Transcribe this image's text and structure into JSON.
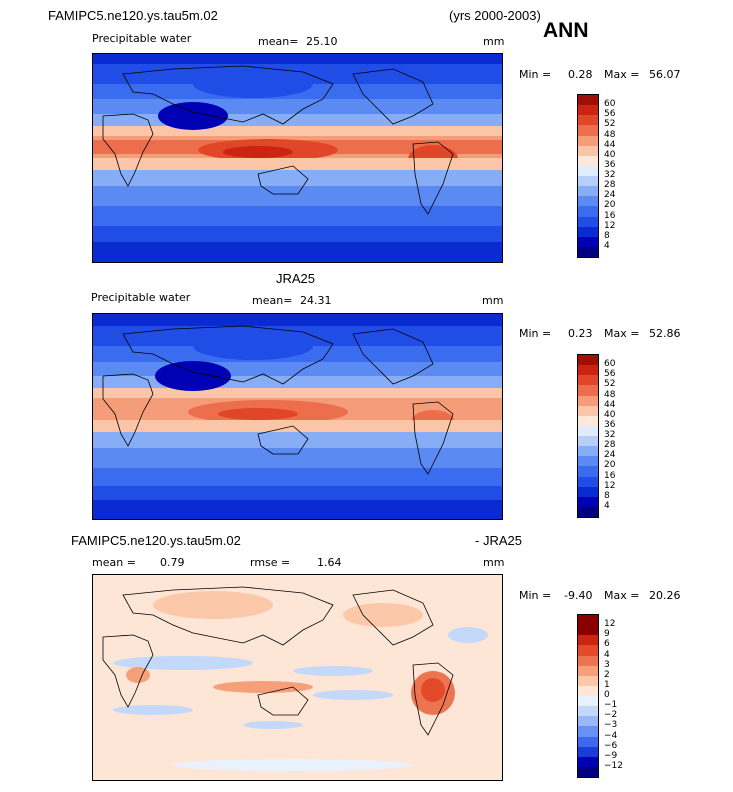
{
  "header": {
    "case_name": "FAMIPC5.ne120.ys.tau5m.02",
    "years": "(yrs 2000-2003)",
    "season": "ANN"
  },
  "panel1": {
    "variable": "Precipitable water",
    "mean_label": "mean=",
    "mean_value": "25.10",
    "units": "mm",
    "min_label": "Min =",
    "min_value": "0.28",
    "max_label": "Max =",
    "max_value": "56.07",
    "colorbar_labels": [
      "60",
      "56",
      "52",
      "48",
      "44",
      "40",
      "36",
      "32",
      "28",
      "24",
      "20",
      "16",
      "12",
      "8",
      "4"
    ]
  },
  "panel2": {
    "title": "JRA25",
    "variable": "Precipitable water",
    "mean_label": "mean=",
    "mean_value": "24.31",
    "units": "mm",
    "min_label": "Min =",
    "min_value": "0.23",
    "max_label": "Max =",
    "max_value": "52.86",
    "colorbar_labels": [
      "60",
      "56",
      "52",
      "48",
      "44",
      "40",
      "36",
      "32",
      "28",
      "24",
      "20",
      "16",
      "12",
      "8",
      "4"
    ]
  },
  "panel3": {
    "title_left": "FAMIPC5.ne120.ys.tau5m.02",
    "title_right": "- JRA25",
    "mean_label": "mean =",
    "mean_value": "0.79",
    "rmse_label": "rmse =",
    "rmse_value": "1.64",
    "units": "mm",
    "min_label": "Min =",
    "min_value": "-9.40",
    "max_label": "Max =",
    "max_value": "20.26",
    "colorbar_labels": [
      "12",
      "9",
      "6",
      "4",
      "3",
      "2",
      "1",
      "0",
      "−1",
      "−2",
      "−3",
      "−4",
      "−6",
      "−9",
      "−12"
    ]
  },
  "colors": {
    "pw_scale": [
      "#000080",
      "#0000b4",
      "#0a2ad2",
      "#1f4de6",
      "#3a6cf0",
      "#5a8af2",
      "#86adf5",
      "#b5cff8",
      "#e0ecfb",
      "#fde8dc",
      "#fbc6a8",
      "#f59c78",
      "#ec6e4c",
      "#e24628",
      "#cc2312",
      "#a00e08",
      "#7a0000"
    ],
    "diff_scale": [
      "#000080",
      "#0000b4",
      "#1a3dd8",
      "#3e68ec",
      "#6a90f2",
      "#9ab8f6",
      "#c4d8fa",
      "#e9f1fd",
      "#fde6d6",
      "#fbc8aa",
      "#f6a07a",
      "#ed7450",
      "#e24a2a",
      "#cc2412",
      "#8a0000"
    ]
  }
}
